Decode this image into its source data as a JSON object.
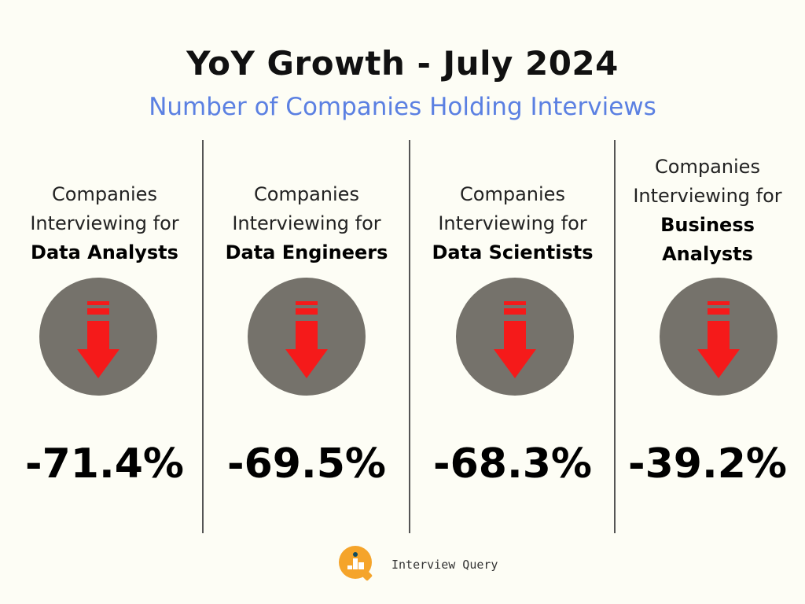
{
  "header": {
    "title": "YoY Growth - July 2024",
    "subtitle": "Number of Companies Holding Interviews"
  },
  "columns": [
    {
      "line1": "Companies",
      "line2": "Interviewing for",
      "role": "Data Analysts",
      "role2": "",
      "value": "-71.4%",
      "icon": "down-arrow-icon"
    },
    {
      "line1": "Companies",
      "line2": "Interviewing for",
      "role": "Data Engineers",
      "role2": "",
      "value": "-69.5%",
      "icon": "down-arrow-icon"
    },
    {
      "line1": "Companies",
      "line2": "Interviewing for",
      "role": "Data Scientists",
      "role2": "",
      "value": "-68.3%",
      "icon": "down-arrow-icon"
    },
    {
      "line1": "Companies",
      "line2": "Interviewing for",
      "role": "Business",
      "role2": "Analysts",
      "value": "-39.2%",
      "icon": "down-arrow-icon"
    }
  ],
  "footer": {
    "brand": "Interview Query"
  },
  "colors": {
    "accent": "#5b80e2",
    "arrow": "#f51a1a",
    "circle": "#75726b",
    "logo": "#f5a42a"
  }
}
